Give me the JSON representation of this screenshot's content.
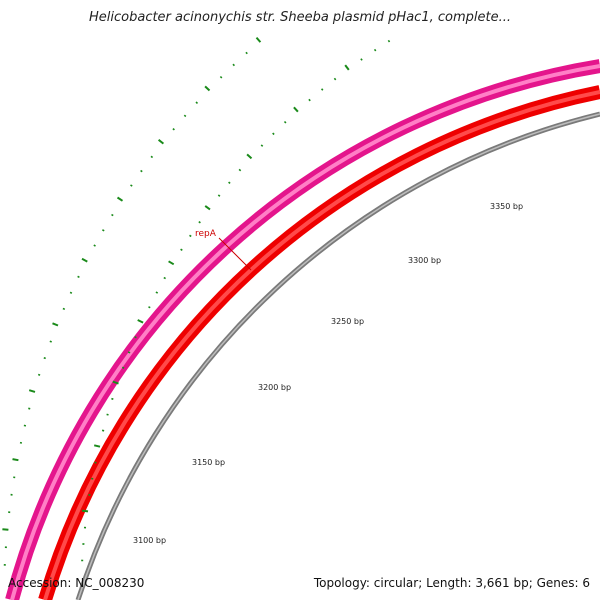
{
  "title": "Helicobacter acinonychis str. Sheeba plasmid pHac1, complete...",
  "footer": {
    "accession": "Accession: NC_008230",
    "info": "Topology: circular; Length: 3,661 bp; Genes: 6"
  },
  "genes": [
    {
      "label": "repA",
      "color": "#cc0000"
    }
  ],
  "ticks": [
    {
      "label": "3100 bp"
    },
    {
      "label": "3150 bp"
    },
    {
      "label": "3200 bp"
    },
    {
      "label": "3250 bp"
    },
    {
      "label": "3300 bp"
    },
    {
      "label": "3350 bp"
    }
  ],
  "colors": {
    "forward_track": "#e4158c",
    "reverse_track": "#ff0000",
    "backbone": "#808080",
    "ticks": "#1a8a1a",
    "label_line": "#cc0000"
  }
}
